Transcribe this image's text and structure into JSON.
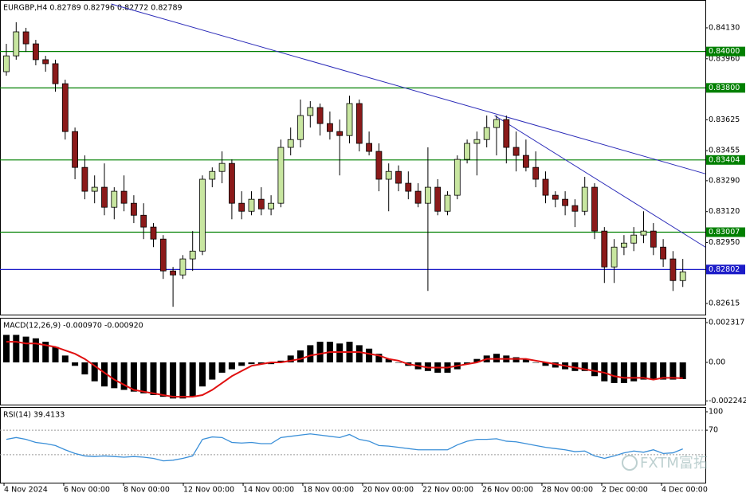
{
  "chart_data": [
    {
      "type": "candlestick",
      "title": "EURGBP,H4 0.82789 0.82796 0.82772 0.82789",
      "xlim": [
        -0.65,
        71.3
      ],
      "xticks": [
        {
          "value": -0.24,
          "label": "4 Nov 2024"
        },
        {
          "value": 5.85,
          "label": "6 Nov 00:00"
        },
        {
          "value": 11.95,
          "label": "8 Nov 00:00"
        },
        {
          "value": 18.05,
          "label": "12 Nov 00:00"
        },
        {
          "value": 24.15,
          "label": "14 Nov 00:00"
        },
        {
          "value": 30.24,
          "label": "18 Nov 00:00"
        },
        {
          "value": 36.34,
          "label": "20 Nov 00:00"
        },
        {
          "value": 42.44,
          "label": "22 Nov 00:00"
        },
        {
          "value": 48.54,
          "label": "26 Nov 00:00"
        },
        {
          "value": 54.63,
          "label": "28 Nov 00:00"
        },
        {
          "value": 60.73,
          "label": "2 Dec 00:00"
        },
        {
          "value": 66.83,
          "label": "4 Dec 00:00"
        }
      ],
      "ylim": [
        0.82554,
        0.84283
      ],
      "yticks": [
        {
          "value": 0.8413,
          "label": "0.84130"
        },
        {
          "value": 0.8396,
          "label": "0.83960"
        },
        0.83625,
        0.83455,
        {
          "value": 0.8329,
          "label": "0.83290"
        },
        {
          "value": 0.8312,
          "label": "0.83120"
        },
        {
          "value": 0.8295,
          "label": "0.82950"
        },
        0.82615
      ],
      "up_color": "#c8e6a0",
      "down_color": "#8b1a1a",
      "ohlc": [
        [
          0.83889,
          0.84042,
          0.83867,
          0.83976
        ],
        [
          0.83976,
          0.84161,
          0.83955,
          0.84108
        ],
        [
          0.84108,
          0.8413,
          0.83998,
          0.84042
        ],
        [
          0.84042,
          0.84064,
          0.83924,
          0.83955
        ],
        [
          0.83955,
          0.83976,
          0.83889,
          0.83933
        ],
        [
          0.83933,
          0.83955,
          0.83779,
          0.83823
        ],
        [
          0.83823,
          0.83845,
          0.83516,
          0.8356
        ],
        [
          0.8356,
          0.83582,
          0.83298,
          0.83363
        ],
        [
          0.83363,
          0.83429,
          0.83188,
          0.83232
        ],
        [
          0.83232,
          0.83319,
          0.83166,
          0.83254
        ],
        [
          0.83254,
          0.83385,
          0.831,
          0.83144
        ],
        [
          0.83144,
          0.83254,
          0.83078,
          0.83232
        ],
        [
          0.83232,
          0.83319,
          0.83122,
          0.83166
        ],
        [
          0.83166,
          0.8321,
          0.83057,
          0.831
        ],
        [
          0.831,
          0.83166,
          0.82969,
          0.83035
        ],
        [
          0.83035,
          0.83057,
          0.82925,
          0.82969
        ],
        [
          0.82969,
          0.82991,
          0.8275,
          0.82794
        ],
        [
          0.82794,
          0.82816,
          0.82597,
          0.82772
        ],
        [
          0.82772,
          0.82881,
          0.8275,
          0.8286
        ],
        [
          0.8286,
          0.83013,
          0.82794,
          0.82903
        ],
        [
          0.82903,
          0.83319,
          0.82881,
          0.83298
        ],
        [
          0.83298,
          0.83363,
          0.83254,
          0.83341
        ],
        [
          0.83341,
          0.83451,
          0.83276,
          0.83385
        ],
        [
          0.83385,
          0.83407,
          0.83078,
          0.83166
        ],
        [
          0.83166,
          0.83232,
          0.83078,
          0.83122
        ],
        [
          0.83122,
          0.83232,
          0.831,
          0.83188
        ],
        [
          0.83188,
          0.83254,
          0.831,
          0.83135
        ],
        [
          0.83135,
          0.8321,
          0.831,
          0.83166
        ],
        [
          0.83166,
          0.83516,
          0.83144,
          0.83473
        ],
        [
          0.83473,
          0.83582,
          0.83429,
          0.83516
        ],
        [
          0.83516,
          0.83736,
          0.83473,
          0.83648
        ],
        [
          0.83648,
          0.83727,
          0.83582,
          0.83692
        ],
        [
          0.83692,
          0.83714,
          0.83538,
          0.83604
        ],
        [
          0.83604,
          0.8367,
          0.83516,
          0.8356
        ],
        [
          0.8356,
          0.83626,
          0.83319,
          0.83538
        ],
        [
          0.83538,
          0.83757,
          0.83495,
          0.83714
        ],
        [
          0.83714,
          0.83736,
          0.83451,
          0.83495
        ],
        [
          0.83495,
          0.8356,
          0.83429,
          0.83451
        ],
        [
          0.83451,
          0.83495,
          0.83232,
          0.83298
        ],
        [
          0.83298,
          0.83385,
          0.83122,
          0.83341
        ],
        [
          0.83341,
          0.83374,
          0.83232,
          0.83276
        ],
        [
          0.83276,
          0.83341,
          0.83188,
          0.83232
        ],
        [
          0.83232,
          0.83276,
          0.83144,
          0.83166
        ],
        [
          0.83166,
          0.83473,
          0.82684,
          0.83254
        ],
        [
          0.83254,
          0.83298,
          0.831,
          0.83122
        ],
        [
          0.83122,
          0.83232,
          0.831,
          0.8321
        ],
        [
          0.8321,
          0.83429,
          0.83188,
          0.83407
        ],
        [
          0.83407,
          0.83516,
          0.83385,
          0.83495
        ],
        [
          0.83495,
          0.8356,
          0.83319,
          0.83516
        ],
        [
          0.83516,
          0.83648,
          0.83473,
          0.83582
        ],
        [
          0.83582,
          0.83648,
          0.83429,
          0.83626
        ],
        [
          0.83626,
          0.83648,
          0.83385,
          0.83473
        ],
        [
          0.83473,
          0.8356,
          0.83341,
          0.83429
        ],
        [
          0.83429,
          0.83516,
          0.83341,
          0.83363
        ],
        [
          0.83363,
          0.83451,
          0.83254,
          0.83298
        ],
        [
          0.83298,
          0.83341,
          0.83166,
          0.8321
        ],
        [
          0.8321,
          0.83232,
          0.83144,
          0.83188
        ],
        [
          0.83188,
          0.83232,
          0.831,
          0.83153
        ],
        [
          0.83153,
          0.83188,
          0.83035,
          0.83122
        ],
        [
          0.83122,
          0.83311,
          0.831,
          0.83254
        ],
        [
          0.83254,
          0.83276,
          0.82969,
          0.83013
        ],
        [
          0.83013,
          0.83035,
          0.82728,
          0.82816
        ],
        [
          0.82816,
          0.82969,
          0.82728,
          0.82925
        ],
        [
          0.82925,
          0.82991,
          0.82881,
          0.82947
        ],
        [
          0.82947,
          0.83035,
          0.82903,
          0.82991
        ],
        [
          0.82991,
          0.83122,
          0.82947,
          0.83013
        ],
        [
          0.83013,
          0.83057,
          0.82881,
          0.82925
        ],
        [
          0.82925,
          0.82969,
          0.82816,
          0.8286
        ],
        [
          0.8286,
          0.82903,
          0.82684,
          0.82741
        ],
        [
          0.82741,
          0.8286,
          0.82706,
          0.82789
        ]
      ],
      "levels": [
        {
          "value": 0.84,
          "label": "0.84000",
          "color": "#008000"
        },
        {
          "value": 0.838,
          "label": "0.83800",
          "color": "#008000"
        },
        {
          "value": 0.83404,
          "color": "#008000"
        },
        {
          "value": 0.83007,
          "color": "#008000"
        },
        {
          "value": 0.82802,
          "color": "#1c1cc8"
        }
      ],
      "trendlines": [
        {
          "points": [
            [
              10.7,
              0.84261
            ],
            [
              71.3,
              0.83328
            ]
          ],
          "color": "#2a2ab8"
        },
        {
          "points": [
            [
              49.8,
              0.83648
            ],
            [
              71.3,
              0.82925
            ]
          ],
          "color": "#2a2ab8"
        }
      ]
    },
    {
      "type": "macd",
      "title": "MACD(12,26,9) -0.000970 -0.000920",
      "ylim": [
        -0.002456,
        0.002595
      ],
      "yticks": [
        0.002317,
        {
          "value": 0,
          "label": "0.00"
        },
        -0.002242
      ],
      "histogram": {
        "color": "#000000",
        "values": [
          0.0016,
          0.0016,
          0.0015,
          0.0014,
          0.0012,
          0.0009,
          0.0004,
          -0.0002,
          -0.0007,
          -0.0011,
          -0.0014,
          -0.0015,
          -0.0016,
          -0.0017,
          -0.0018,
          -0.0019,
          -0.002,
          -0.0021,
          -0.0021,
          -0.002,
          -0.0014,
          -0.001,
          -0.0006,
          -0.0004,
          -0.0002,
          -0.0001,
          -0.0001,
          -0.0001,
          0.0001,
          0.0004,
          0.0007,
          0.001,
          0.0012,
          0.0012,
          0.0011,
          0.0012,
          0.001,
          0.0008,
          0.0005,
          0.0002,
          0,
          -0.0002,
          -0.0004,
          -0.0005,
          -0.0006,
          -0.0006,
          -0.0004,
          -0.0001,
          0.0002,
          0.0004,
          0.0005,
          0.0004,
          0.0003,
          0.0002,
          0,
          -0.0002,
          -0.0003,
          -0.0004,
          -0.0005,
          -0.0005,
          -0.0008,
          -0.0011,
          -0.0012,
          -0.0012,
          -0.0011,
          -0.001,
          -0.001,
          -0.001,
          -0.001,
          -0.00097
        ]
      },
      "signal": {
        "color": "#e01010",
        "values": [
          0.0012,
          0.0012,
          0.0011,
          0.0011,
          0.001,
          0.0009,
          0.0007,
          0.0005,
          0.0002,
          -0.0002,
          -0.0006,
          -0.001,
          -0.0013,
          -0.0016,
          -0.0017,
          -0.0018,
          -0.0019,
          -0.002,
          -0.002,
          -0.002,
          -0.0019,
          -0.0016,
          -0.0012,
          -0.0008,
          -0.0005,
          -0.0002,
          -0.0001,
          0,
          0,
          0.0001,
          0.0002,
          0.0004,
          0.0005,
          0.0006,
          0.0006,
          0.0006,
          0.0006,
          0.0005,
          0.0004,
          0.0002,
          0.0001,
          -0.0001,
          -0.0002,
          -0.0003,
          -0.0003,
          -0.0003,
          -0.0002,
          -0.0001,
          0,
          0.0002,
          0.0002,
          0.0002,
          0.0002,
          0.0002,
          0.0001,
          0,
          -0.0001,
          -0.0002,
          -0.0003,
          -0.0004,
          -0.0005,
          -0.0006,
          -0.0008,
          -0.0009,
          -0.0009,
          -0.0009,
          -0.001,
          -0.0009,
          -0.0009,
          -0.00092
        ]
      }
    },
    {
      "type": "line",
      "title": "RSI(14) 39.4133",
      "ylim": [
        -15.6,
        107.8
      ],
      "yticks": [
        100,
        70
      ],
      "levels": [
        70,
        30
      ],
      "color": "#3a8fd8",
      "values": [
        55,
        58,
        55,
        50,
        48,
        45,
        38,
        32,
        28,
        27,
        28,
        27,
        26,
        27,
        26,
        24,
        20,
        21,
        24,
        28,
        55,
        59,
        58,
        50,
        49,
        50,
        48,
        48,
        58,
        60,
        62,
        64,
        62,
        60,
        58,
        63,
        55,
        52,
        45,
        44,
        42,
        40,
        38,
        38,
        38,
        38,
        46,
        52,
        55,
        55,
        56,
        52,
        51,
        48,
        45,
        42,
        40,
        38,
        35,
        36,
        28,
        24,
        28,
        33,
        36,
        34,
        38,
        32,
        33,
        39.4133
      ]
    }
  ],
  "watermark": "FXTM富拓"
}
